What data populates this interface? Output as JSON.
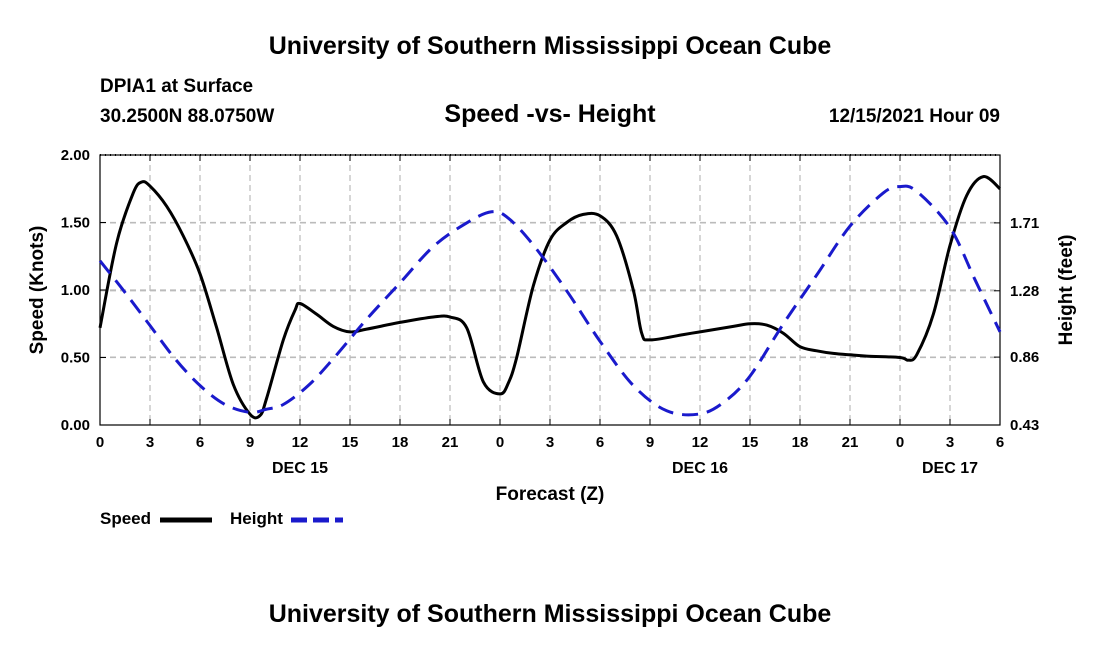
{
  "header": {
    "title": "University of Southern Mississippi Ocean Cube",
    "station": "DPIA1 at Surface",
    "coords": "30.2500N  88.0750W",
    "subtitle": "Speed -vs- Height",
    "datetime": "12/15/2021 Hour 09"
  },
  "footer": {
    "title": "University of Southern Mississippi Ocean Cube"
  },
  "legend": {
    "speed_label": "Speed",
    "height_label": "Height"
  },
  "chart_data": {
    "type": "line",
    "title": "Speed -vs- Height",
    "xlabel": "Forecast (Z)",
    "ylabel": "Speed (Knots)",
    "y2label": "Height (feet)",
    "x_unit": "hours since Dec 15 00Z",
    "xlim": [
      0,
      54
    ],
    "ylim": [
      0,
      2.0
    ],
    "y2lim": [
      0.43,
      2.14
    ],
    "x_ticks": [
      0,
      3,
      6,
      9,
      12,
      15,
      18,
      21,
      24,
      27,
      30,
      33,
      36,
      39,
      42,
      45,
      48,
      51,
      54
    ],
    "x_tick_labels": [
      "0",
      "3",
      "6",
      "9",
      "12",
      "15",
      "18",
      "21",
      "0",
      "3",
      "6",
      "9",
      "12",
      "15",
      "18",
      "21",
      "0",
      "3",
      "6"
    ],
    "day_labels": [
      {
        "x": 12,
        "label": "DEC 15"
      },
      {
        "x": 36,
        "label": "DEC 16"
      },
      {
        "x": 51,
        "label": "DEC 17"
      }
    ],
    "y_ticks": [
      0,
      0.5,
      1.0,
      1.5,
      2.0
    ],
    "y_tick_labels": [
      "0.00",
      "0.50",
      "1.00",
      "1.50",
      "2.00"
    ],
    "y2_ticks": [
      0.43,
      0.86,
      1.28,
      1.71
    ],
    "y2_tick_labels": [
      "0.43",
      "0.86",
      "1.28",
      "1.71"
    ],
    "series": [
      {
        "name": "Speed",
        "axis": "left",
        "color": "#000000",
        "dash": "solid",
        "x": [
          0,
          1,
          2,
          2.5,
          3,
          4,
          5,
          6,
          7,
          8,
          9,
          9.6,
          10,
          11,
          11.7,
          12,
          13,
          14,
          15,
          16,
          18,
          20,
          21,
          22,
          23,
          24,
          24.5,
          25,
          26,
          27,
          28,
          29,
          30,
          31,
          32,
          32.5,
          33,
          35,
          36,
          38,
          39,
          40,
          41,
          42,
          43,
          44,
          45,
          46,
          48,
          48.5,
          49,
          50,
          51,
          52,
          53,
          54
        ],
        "values": [
          0.72,
          1.35,
          1.72,
          1.8,
          1.77,
          1.62,
          1.4,
          1.12,
          0.72,
          0.3,
          0.08,
          0.07,
          0.2,
          0.63,
          0.85,
          0.9,
          0.82,
          0.73,
          0.69,
          0.71,
          0.76,
          0.8,
          0.8,
          0.72,
          0.32,
          0.23,
          0.31,
          0.5,
          1.03,
          1.37,
          1.5,
          1.56,
          1.55,
          1.4,
          1.0,
          0.68,
          0.63,
          0.67,
          0.69,
          0.73,
          0.75,
          0.74,
          0.68,
          0.58,
          0.55,
          0.53,
          0.52,
          0.51,
          0.5,
          0.48,
          0.52,
          0.82,
          1.33,
          1.7,
          1.84,
          1.75
        ]
      },
      {
        "name": "Height",
        "axis": "right",
        "color": "#1a1acc",
        "dash": "dashed",
        "x": [
          0,
          1.5,
          3,
          4.5,
          6,
          7.5,
          9,
          10,
          11,
          12.5,
          14,
          16,
          18,
          20,
          22,
          23.5,
          24.5,
          26,
          28,
          30,
          32,
          34,
          36,
          37.5,
          39,
          41,
          43,
          45,
          47,
          48,
          49,
          51,
          52.5,
          54
        ],
        "values": [
          1.47,
          1.27,
          1.06,
          0.85,
          0.68,
          0.56,
          0.51,
          0.53,
          0.56,
          0.68,
          0.85,
          1.1,
          1.33,
          1.56,
          1.71,
          1.78,
          1.74,
          1.57,
          1.28,
          0.96,
          0.68,
          0.52,
          0.5,
          0.58,
          0.74,
          1.07,
          1.38,
          1.69,
          1.9,
          1.94,
          1.91,
          1.68,
          1.35,
          1.02
        ]
      }
    ]
  }
}
